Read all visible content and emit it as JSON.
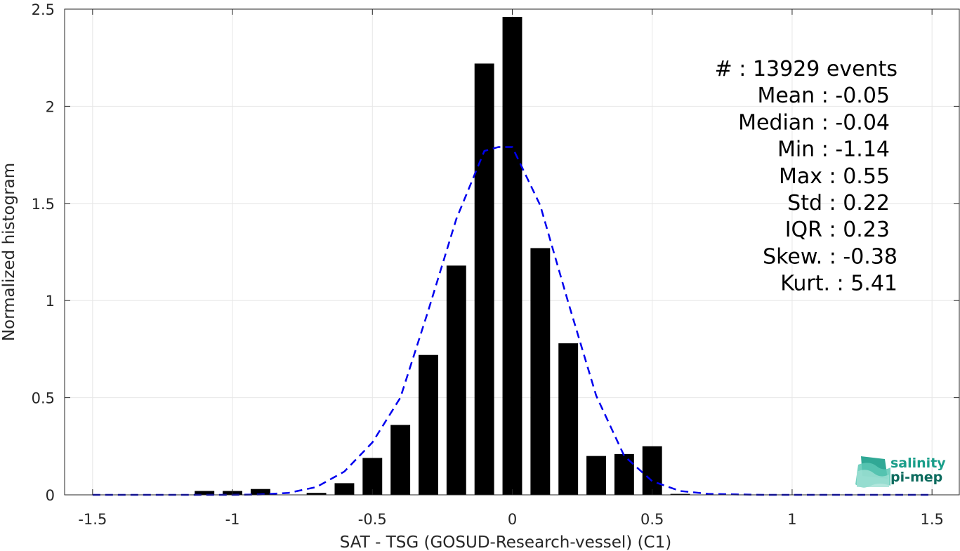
{
  "chart_data": {
    "type": "bar",
    "xlabel": "SAT - TSG (GOSUD-Research-vessel) (C1)",
    "ylabel": "Normalized histogram",
    "xlim": [
      -1.6,
      1.6
    ],
    "ylim": [
      0,
      2.5
    ],
    "grid": true,
    "x_ticks": [
      -1.5,
      -1,
      -0.5,
      0,
      0.5,
      1,
      1.5
    ],
    "x_tick_labels": [
      "-1.5",
      "-1",
      "-0.5",
      "0",
      "0.5",
      "1",
      "1.5"
    ],
    "y_ticks": [
      0,
      0.5,
      1,
      1.5,
      2,
      2.5
    ],
    "y_tick_labels": [
      "0",
      "0.5",
      "1",
      "1.5",
      "2",
      "2.5"
    ],
    "bar_width": 0.07,
    "bars": {
      "x": [
        -1.1,
        -1.0,
        -0.9,
        -0.8,
        -0.7,
        -0.6,
        -0.5,
        -0.4,
        -0.3,
        -0.2,
        -0.1,
        0.0,
        0.1,
        0.2,
        0.3,
        0.4,
        0.5,
        0.6
      ],
      "y": [
        0.02,
        0.02,
        0.03,
        0.0,
        0.01,
        0.06,
        0.19,
        0.36,
        0.72,
        1.18,
        2.22,
        2.46,
        1.27,
        0.78,
        0.2,
        0.21,
        0.25,
        0.005
      ],
      "color": "#000000"
    },
    "fit_curve": {
      "style": "dashed",
      "color": "#0000ee",
      "x": [
        -1.5,
        -1.4,
        -1.3,
        -1.2,
        -1.1,
        -1.0,
        -0.9,
        -0.8,
        -0.7,
        -0.6,
        -0.5,
        -0.4,
        -0.3,
        -0.2,
        -0.1,
        -0.05,
        0.0,
        0.1,
        0.2,
        0.3,
        0.4,
        0.5,
        0.6,
        0.7,
        0.8,
        0.9,
        1.0,
        1.1,
        1.2,
        1.3,
        1.4,
        1.5
      ],
      "y": [
        0,
        0,
        0,
        0,
        0,
        0,
        0.002,
        0.01,
        0.04,
        0.12,
        0.27,
        0.5,
        0.95,
        1.42,
        1.77,
        1.79,
        1.79,
        1.49,
        0.99,
        0.51,
        0.2,
        0.07,
        0.02,
        0.005,
        0.002,
        0,
        0,
        0,
        0,
        0,
        0,
        0
      ]
    },
    "stats_lines": [
      "#  : 13929 events",
      "Mean : -0.05",
      "Median : -0.04",
      "Min : -1.14",
      "Max : 0.55",
      "Std : 0.22",
      "IQR : 0.23",
      "Skew. : -0.38",
      "Kurt. : 5.41"
    ]
  },
  "logo": {
    "line1": "salinity",
    "line2": "pi-mep",
    "color_primary": "#1a9e8a",
    "color_dark": "#0d6b5e"
  },
  "colors": {
    "axis": "#262626",
    "grid": "#e6e6e6"
  }
}
